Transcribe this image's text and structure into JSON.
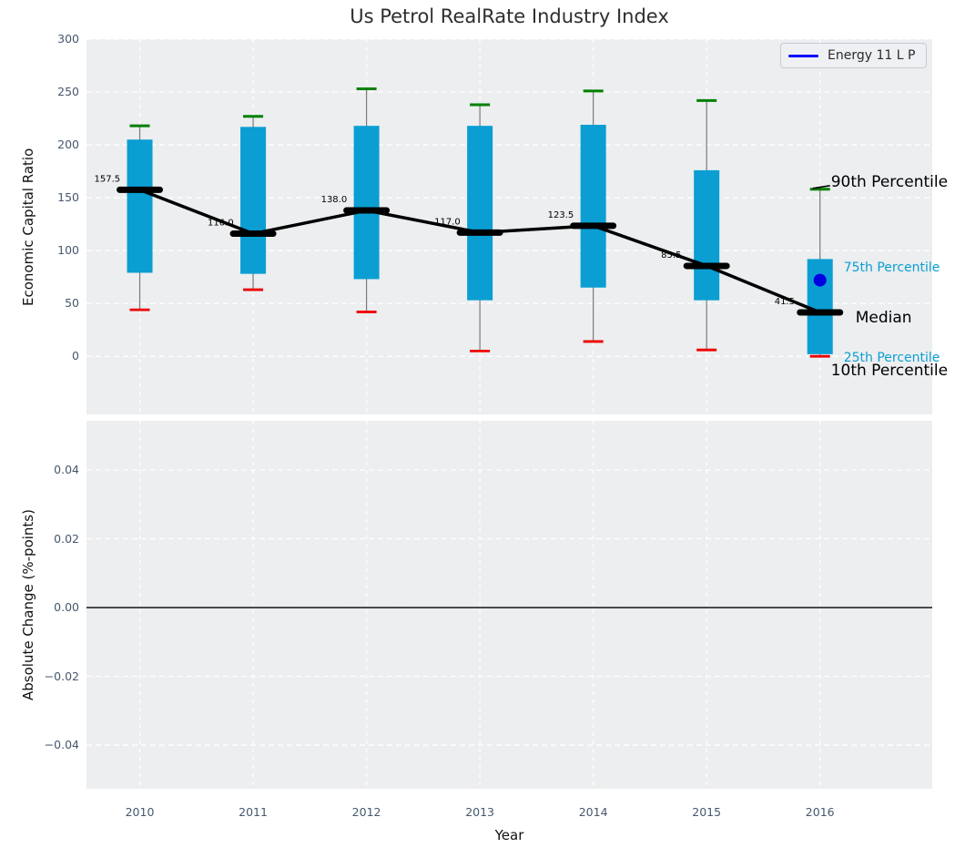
{
  "figure": {
    "title": "Us Petrol RealRate Industry Index",
    "xlabel": "Year",
    "background": "#ffffff",
    "axes_background": "#eceef0"
  },
  "legend": {
    "label": "Energy 11 L P",
    "line_color": "#0000ff"
  },
  "colors": {
    "box_fill": "#0a9ed3",
    "p90_cap": "#008000",
    "p10_cap": "#ee0000",
    "whisker": "#7a7a7a",
    "median": "#000000",
    "company_point": "#0000e0",
    "grid": "#ffffff",
    "tick_text": "#46586e",
    "annotation_cyan": "#0a9ed3",
    "annotation_black": "#000000",
    "zero_line": "#000000"
  },
  "chart_data": [
    {
      "type": "boxplot",
      "title": "Us Petrol RealRate Industry Index",
      "ylabel": "Economic Capital Ratio",
      "xlabel": "Year",
      "grid": true,
      "legend_position": "upper right",
      "xlim": [
        2009.53,
        2016.99
      ],
      "ylim": [
        -55,
        300
      ],
      "yticks": [
        0,
        50,
        100,
        150,
        200,
        250,
        300
      ],
      "categories": [
        2010,
        2011,
        2012,
        2013,
        2014,
        2015,
        2016
      ],
      "boxes": [
        {
          "year": 2010,
          "p10": 44,
          "p25": 79,
          "median": 157.5,
          "p75": 205,
          "p90": 218
        },
        {
          "year": 2011,
          "p10": 63,
          "p25": 78,
          "median": 116.0,
          "p75": 217,
          "p90": 227
        },
        {
          "year": 2012,
          "p10": 42,
          "p25": 73,
          "median": 138.0,
          "p75": 218,
          "p90": 253
        },
        {
          "year": 2013,
          "p10": 5,
          "p25": 53,
          "median": 117.0,
          "p75": 218,
          "p90": 238
        },
        {
          "year": 2014,
          "p10": 14,
          "p25": 65,
          "median": 123.5,
          "p75": 219,
          "p90": 251
        },
        {
          "year": 2015,
          "p10": 6,
          "p25": 53,
          "median": 85.5,
          "p75": 176,
          "p90": 242
        },
        {
          "year": 2016,
          "p10": 0,
          "p25": 2,
          "median": 41.5,
          "p75": 92,
          "p90": 158
        }
      ],
      "median_line": {
        "x": [
          2010,
          2011,
          2012,
          2013,
          2014,
          2015,
          2016
        ],
        "y": [
          157.5,
          116.0,
          138.0,
          117.0,
          123.5,
          85.5,
          41.5
        ]
      },
      "company_series": {
        "name": "Energy 11 L P",
        "points": [
          {
            "x": 2016,
            "y": 72
          }
        ]
      },
      "annotations": [
        {
          "text": "90th Percentile",
          "v": 164,
          "dx": 12,
          "color": "black",
          "size": 17,
          "leader": true
        },
        {
          "text": "75th Percentile",
          "v": 84,
          "dx": 26,
          "color": "cyan",
          "size": 14,
          "leader": false
        },
        {
          "text": "Median",
          "v": 36,
          "dx": 39,
          "color": "black",
          "size": 17,
          "leader": false
        },
        {
          "text": "25th Percentile",
          "v": -2,
          "dx": 26,
          "color": "cyan",
          "size": 14,
          "leader": false
        },
        {
          "text": "10th Percentile",
          "v": -14,
          "dx": 12,
          "color": "black",
          "size": 17,
          "leader": false
        }
      ]
    },
    {
      "type": "line",
      "ylabel": "Absolute Change (%-points)",
      "xlabel": "Year",
      "grid": true,
      "xlim": [
        2009.53,
        2016.99
      ],
      "ylim": [
        -0.0527,
        0.0543
      ],
      "yticks": [
        0.04,
        0.02,
        0.0,
        -0.02,
        -0.04
      ],
      "categories": [
        2010,
        2011,
        2012,
        2013,
        2014,
        2015,
        2016
      ],
      "series": [],
      "zero_line": 0.0
    }
  ]
}
